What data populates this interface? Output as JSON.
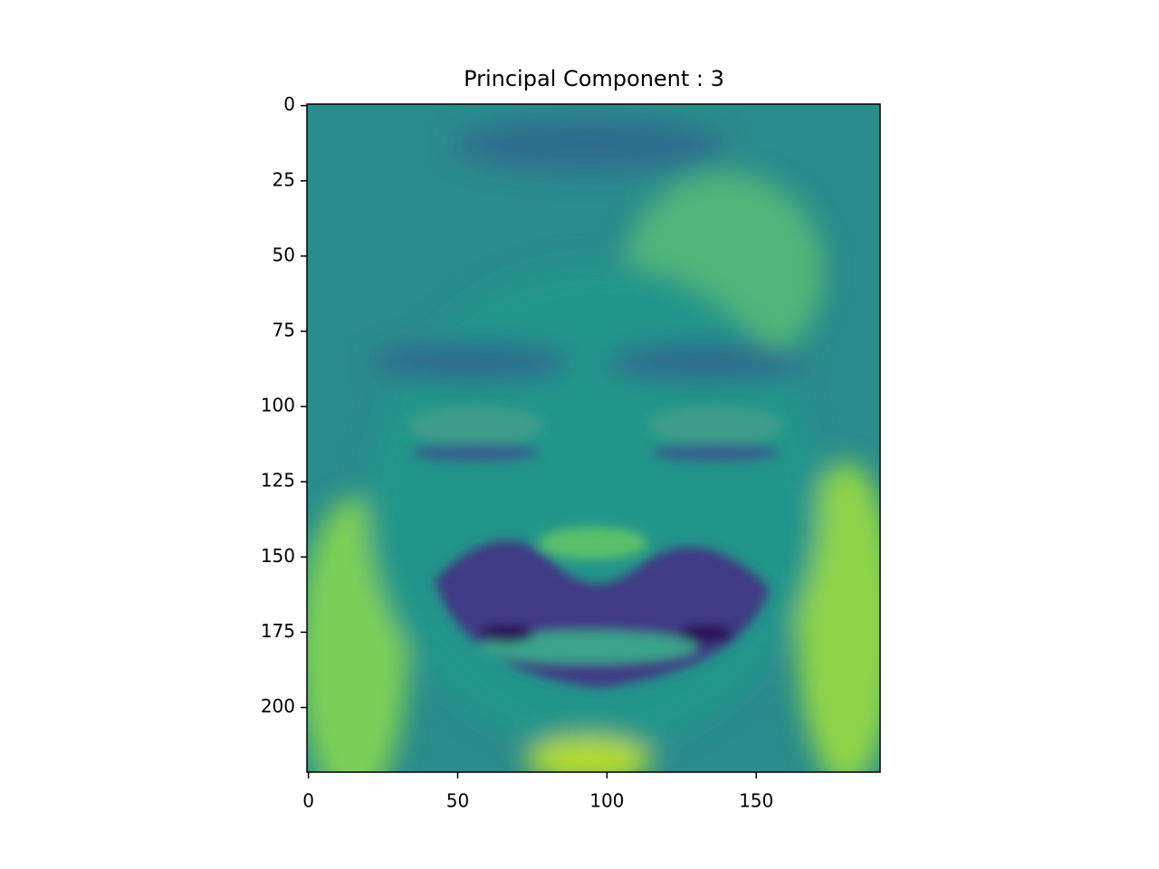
{
  "chart_data": {
    "type": "image",
    "title": "Principal Component : 3",
    "xlim": [
      -0.5,
      191.5
    ],
    "ylim": [
      221.5,
      -0.5
    ],
    "xticks": [
      0,
      50,
      100,
      150
    ],
    "yticks": [
      0,
      25,
      50,
      75,
      100,
      125,
      150,
      175,
      200
    ],
    "colormap": "viridis"
  }
}
